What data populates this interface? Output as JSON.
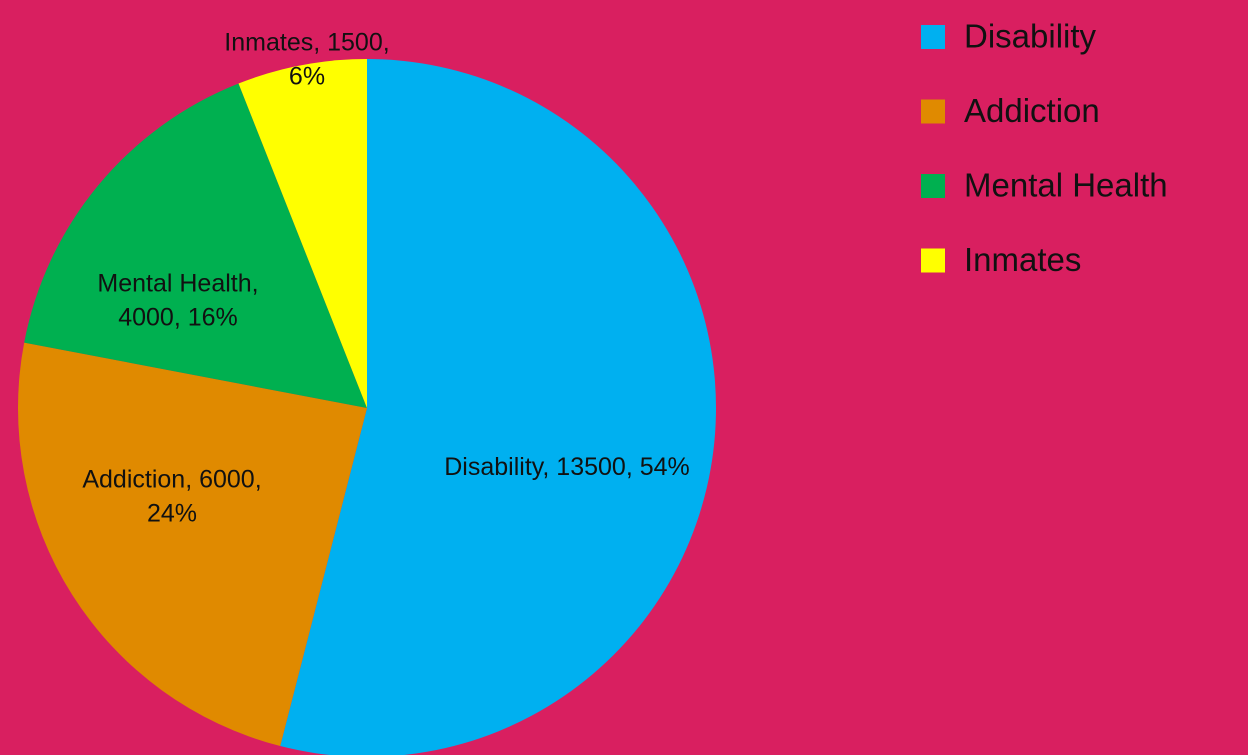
{
  "chart_data": {
    "type": "pie",
    "categories": [
      "Disability",
      "Addiction",
      "Mental Health",
      "Inmates"
    ],
    "values": [
      13500,
      6000,
      4000,
      1500
    ],
    "value_labels": [
      "Disability, 13500, 54%",
      "Addiction, 6000, 24%",
      "Mental Health, 4000, 16%",
      "Inmates, 1500, 6%"
    ],
    "colors": [
      "#00b0f0",
      "#e08a00",
      "#00b050",
      "#ffff00"
    ],
    "legend": "right"
  }
}
